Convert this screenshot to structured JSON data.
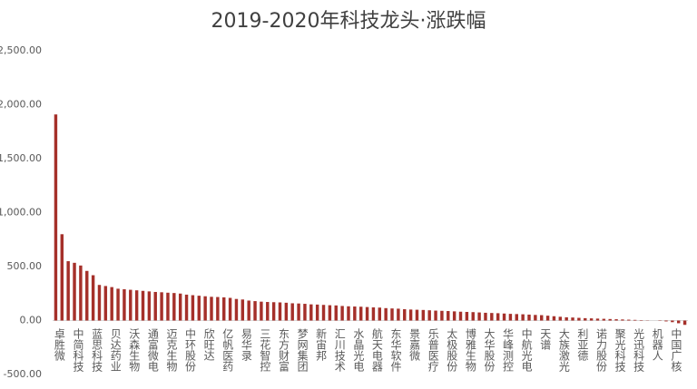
{
  "chart_data": {
    "type": "bar",
    "title": "2019-2020年科技龙头·涨跌幅",
    "categories": [
      "卓胜微",
      null,
      null,
      "中简科技",
      null,
      null,
      "蓝思科技",
      null,
      null,
      "贝达药业",
      null,
      null,
      "沃森生物",
      null,
      null,
      "通富微电",
      null,
      null,
      "迈克生物",
      null,
      null,
      "中环股份",
      null,
      null,
      "欣旺达",
      null,
      null,
      "亿帆医药",
      null,
      null,
      "易华录",
      null,
      null,
      "三花智控",
      null,
      null,
      "东方财富",
      null,
      null,
      "梦网集团",
      null,
      null,
      "新宙邦",
      null,
      null,
      "汇川技术",
      null,
      null,
      "水晶光电",
      null,
      null,
      "航天电器",
      null,
      null,
      "东华软件",
      null,
      null,
      "景嘉微",
      null,
      null,
      "乐普医疗",
      null,
      null,
      "太极股份",
      null,
      null,
      "博雅生物",
      null,
      null,
      "大华股份",
      null,
      null,
      "华峰测控",
      null,
      null,
      "中航光电",
      null,
      null,
      "天谱",
      null,
      null,
      "大族激光",
      null,
      null,
      "利亚德",
      null,
      null,
      "诺力股份",
      null,
      null,
      "聚光科技",
      null,
      null,
      "光迅科技",
      null,
      null,
      "机器人",
      null,
      null,
      "中国广核",
      null,
      null
    ],
    "values": [
      1910,
      800,
      550,
      535,
      510,
      460,
      420,
      330,
      320,
      310,
      295,
      290,
      285,
      280,
      275,
      270,
      265,
      262,
      258,
      255,
      250,
      240,
      235,
      230,
      225,
      220,
      218,
      215,
      210,
      200,
      195,
      185,
      180,
      175,
      172,
      170,
      168,
      165,
      160,
      158,
      155,
      150,
      148,
      145,
      142,
      140,
      135,
      132,
      130,
      128,
      125,
      122,
      120,
      115,
      112,
      110,
      105,
      102,
      100,
      98,
      95,
      92,
      90,
      88,
      85,
      82,
      80,
      78,
      75,
      72,
      70,
      68,
      65,
      62,
      60,
      58,
      55,
      52,
      50,
      45,
      40,
      35,
      30,
      28,
      25,
      22,
      20,
      18,
      16,
      14,
      12,
      10,
      8,
      6,
      4,
      2,
      0,
      -3,
      -8,
      -15,
      -25,
      -40
    ],
    "color": "#a5302a",
    "ylim": [
      -500,
      2500
    ],
    "yticks": [
      {
        "value": -500,
        "label": "-500.00"
      },
      {
        "value": 0,
        "label": "0.00"
      },
      {
        "value": 500,
        "label": "500.00"
      },
      {
        "value": 1000,
        "label": "1,000.00"
      },
      {
        "value": 1500,
        "label": "1,500.00"
      },
      {
        "value": 2000,
        "label": "2,000.00"
      },
      {
        "value": 2500,
        "label": "2,500.00"
      }
    ]
  }
}
